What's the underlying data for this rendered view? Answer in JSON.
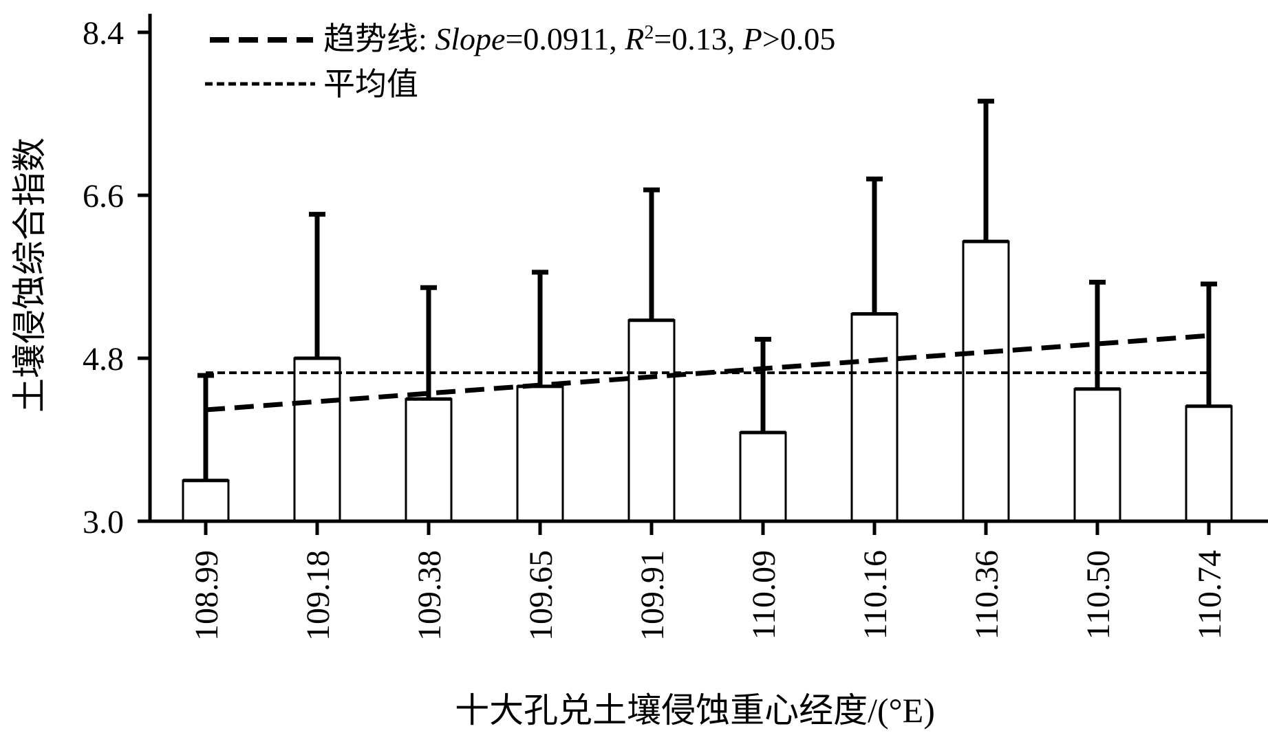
{
  "chart_data": {
    "type": "bar",
    "title": "",
    "xlabel": "十大孔兑土壤侵蚀重心经度/(°E)",
    "ylabel": "土壤侵蚀综合指数",
    "ylim": [
      3.0,
      8.4
    ],
    "yticks": [
      "3.0",
      "4.8",
      "6.6",
      "8.4"
    ],
    "categories": [
      "108.99",
      "109.18",
      "109.38",
      "109.65",
      "109.91",
      "110.09",
      "110.16",
      "110.36",
      "110.50",
      "110.74"
    ],
    "values": [
      3.45,
      4.8,
      4.35,
      4.49,
      5.22,
      3.98,
      5.29,
      6.09,
      4.46,
      4.27
    ],
    "error_upper": [
      4.61,
      6.39,
      5.58,
      5.75,
      6.66,
      5.01,
      6.78,
      7.64,
      5.64,
      5.62
    ],
    "mean": 4.64,
    "trend": {
      "start": 4.23,
      "slope": 0.0911
    },
    "legend": {
      "position": "top-left",
      "trend_label": "趋势线: ",
      "trend_slope_name": "Slope",
      "trend_slope_value": "=0.0911, ",
      "trend_r_name": "R",
      "trend_r_sup": "2",
      "trend_r_value": "=0.13, ",
      "trend_p_name": "P",
      "trend_p_value": ">0.05",
      "mean_label": "平均值"
    }
  }
}
